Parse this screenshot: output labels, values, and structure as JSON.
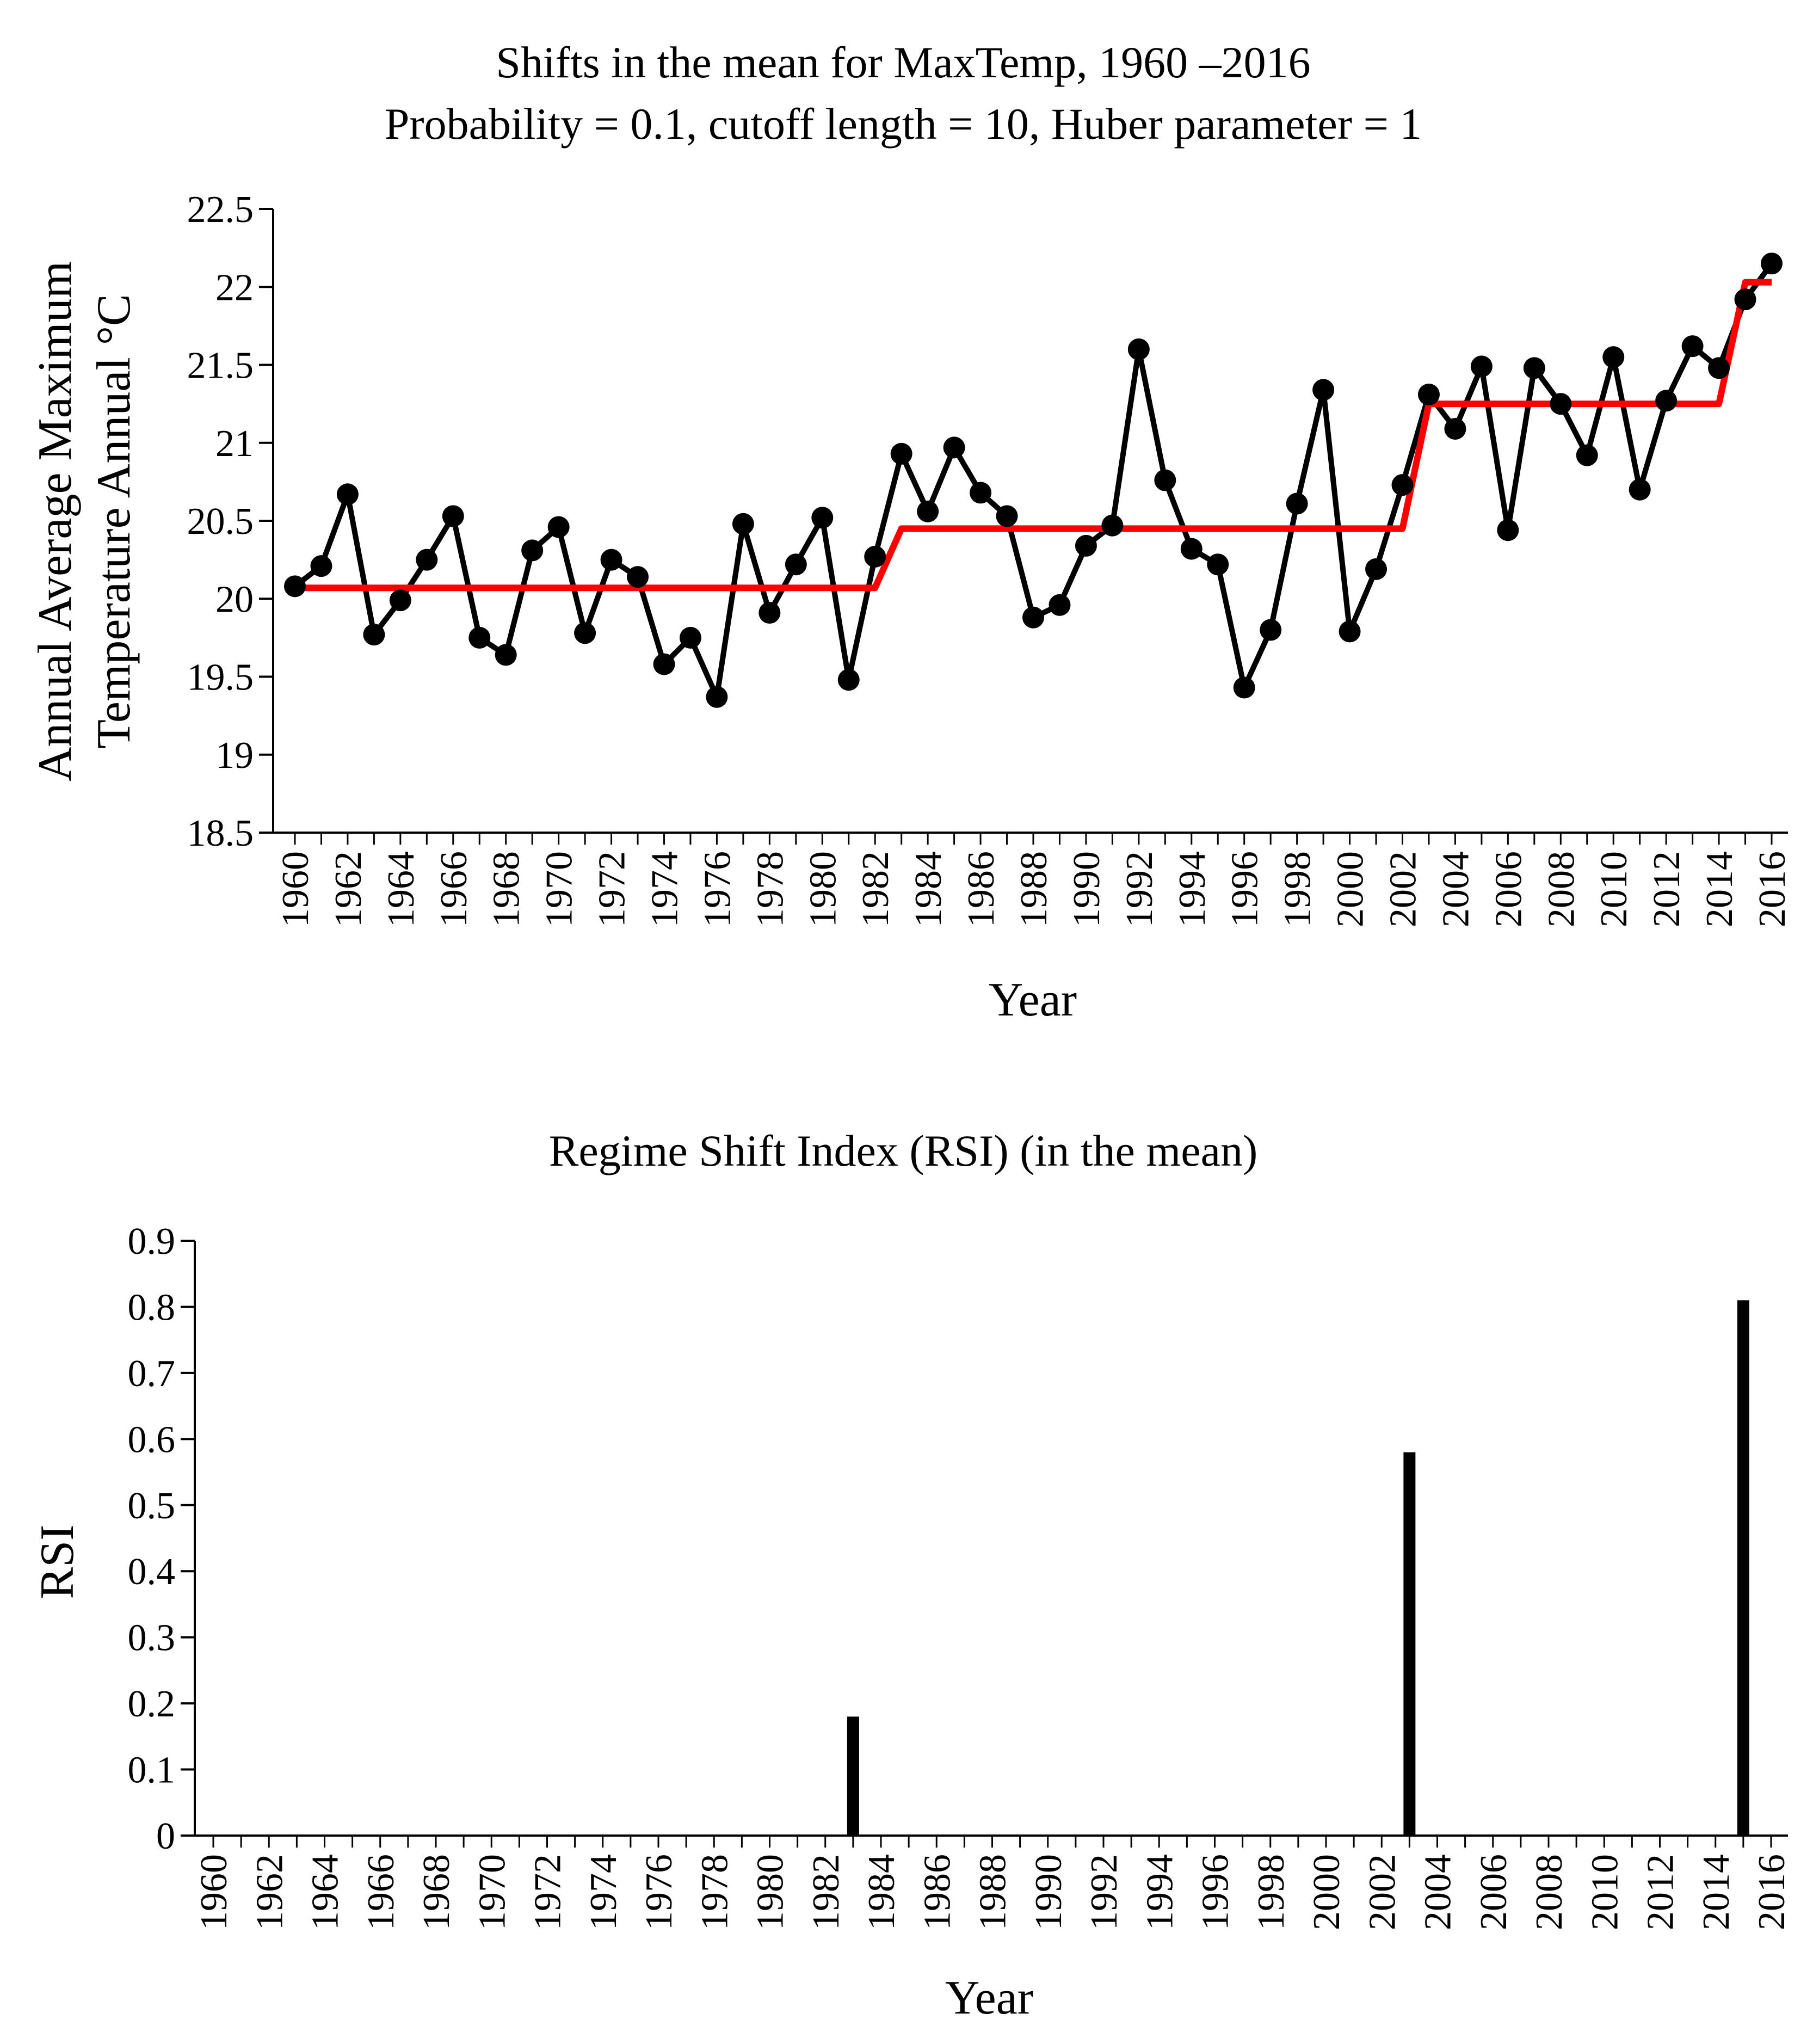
{
  "chart_data": [
    {
      "type": "line",
      "title": "Shifts in the mean for MaxTemp, 1960 –2016",
      "subtitle": "Probability = 0.1, cutoff length = 10, Huber parameter = 1",
      "xlabel": "Year",
      "ylabel": "Annual Average Maximum Temperature Annual °C",
      "ylabel_lines": [
        "Annual Average Maximum",
        "Temperature Annual °C"
      ],
      "ylim": [
        18.5,
        22.5
      ],
      "yticks": [
        "18.5",
        "19",
        "19.5",
        "20",
        "20.5",
        "21",
        "21.5",
        "22",
        "22.5"
      ],
      "xlim": [
        1960,
        2016
      ],
      "xticks": [
        "1960",
        "1962",
        "1964",
        "1966",
        "1968",
        "1970",
        "1972",
        "1974",
        "1976",
        "1978",
        "1980",
        "1982",
        "1984",
        "1986",
        "1988",
        "1990",
        "1992",
        "1994",
        "1996",
        "1998",
        "2000",
        "2002",
        "2004",
        "2006",
        "2008",
        "2010",
        "2012",
        "2014",
        "2016"
      ],
      "series": [
        {
          "name": "MaxTemp",
          "color": "#000000",
          "x": [
            1960,
            1961,
            1962,
            1963,
            1964,
            1965,
            1966,
            1967,
            1968,
            1969,
            1970,
            1971,
            1972,
            1973,
            1974,
            1975,
            1976,
            1977,
            1978,
            1979,
            1980,
            1981,
            1982,
            1983,
            1984,
            1985,
            1986,
            1987,
            1988,
            1989,
            1990,
            1991,
            1992,
            1993,
            1994,
            1995,
            1996,
            1997,
            1998,
            1999,
            2000,
            2001,
            2002,
            2003,
            2004,
            2005,
            2006,
            2007,
            2008,
            2009,
            2010,
            2011,
            2012,
            2013,
            2014,
            2015,
            2016
          ],
          "values": [
            20.08,
            20.21,
            20.67,
            19.77,
            19.99,
            20.25,
            20.53,
            19.75,
            19.64,
            20.31,
            20.46,
            19.78,
            20.25,
            20.14,
            19.58,
            19.75,
            19.37,
            20.48,
            19.91,
            20.22,
            20.52,
            19.48,
            20.27,
            20.93,
            20.56,
            20.97,
            20.68,
            20.53,
            19.88,
            19.96,
            20.34,
            20.47,
            21.6,
            20.76,
            20.32,
            20.22,
            19.43,
            19.8,
            20.61,
            21.34,
            19.79,
            20.19,
            20.73,
            21.31,
            21.09,
            21.49,
            20.44,
            21.48,
            21.25,
            20.92,
            21.55,
            20.7,
            21.27,
            21.62,
            21.48,
            21.92,
            22.15
          ]
        },
        {
          "name": "Regime mean",
          "color": "#ff0000",
          "x": [
            1960,
            1982,
            1983,
            2002,
            2003,
            2014,
            2015,
            2016
          ],
          "values": [
            20.07,
            20.07,
            20.45,
            20.45,
            21.25,
            21.25,
            22.03,
            22.03
          ]
        }
      ]
    },
    {
      "type": "bar",
      "title": "Regime Shift Index (RSI) (in the mean)",
      "xlabel": "Year",
      "ylabel": "RSI",
      "ylim": [
        0,
        0.9
      ],
      "yticks": [
        "0",
        "0.1",
        "0.2",
        "0.3",
        "0.4",
        "0.5",
        "0.6",
        "0.7",
        "0.8",
        "0.9"
      ],
      "xlim": [
        1960,
        2016
      ],
      "xticks": [
        "1960",
        "1962",
        "1964",
        "1966",
        "1968",
        "1970",
        "1972",
        "1974",
        "1976",
        "1978",
        "1980",
        "1982",
        "1984",
        "1986",
        "1988",
        "1990",
        "1992",
        "1994",
        "1996",
        "1998",
        "2000",
        "2002",
        "2004",
        "2006",
        "2008",
        "2010",
        "2012",
        "2014",
        "2016"
      ],
      "series": [
        {
          "name": "RSI",
          "color": "#000000",
          "x": [
            1983,
            2003,
            2015
          ],
          "values": [
            0.18,
            0.58,
            0.81
          ]
        }
      ]
    }
  ]
}
